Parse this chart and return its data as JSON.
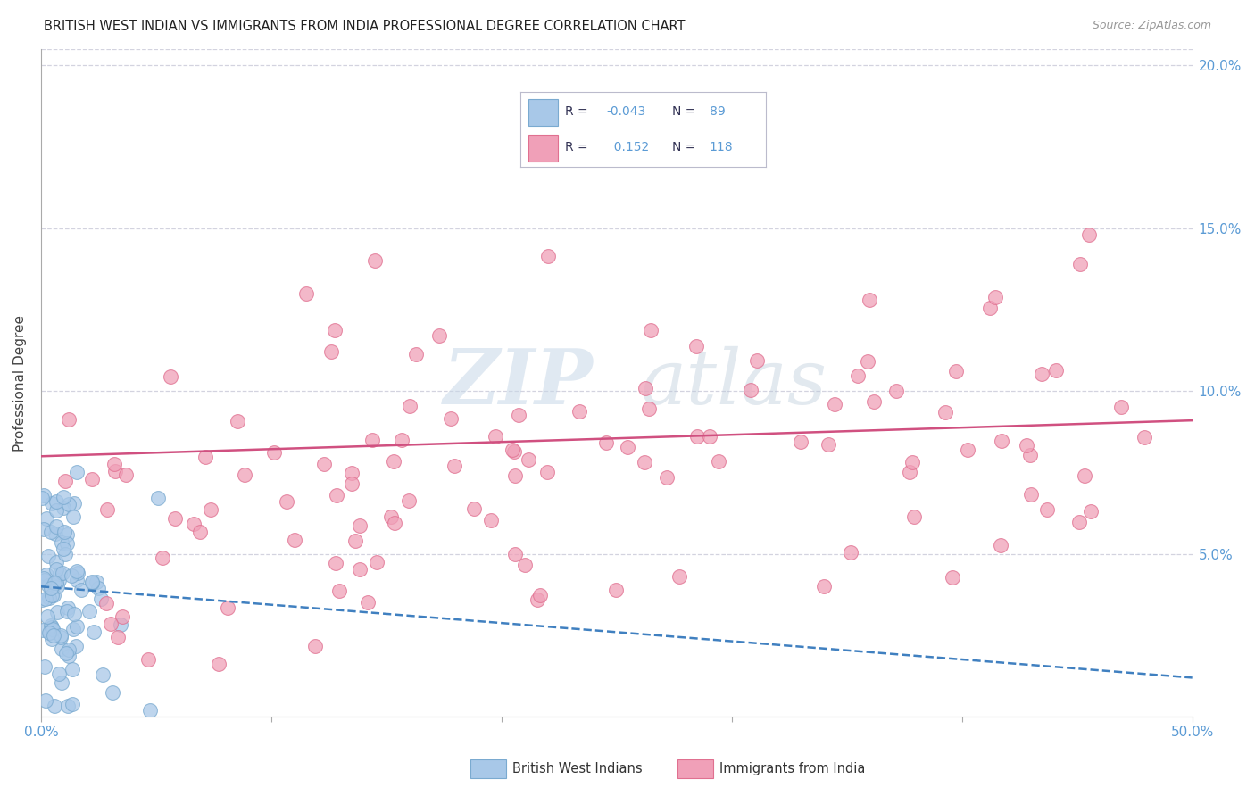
{
  "title": "BRITISH WEST INDIAN VS IMMIGRANTS FROM INDIA PROFESSIONAL DEGREE CORRELATION CHART",
  "source": "Source: ZipAtlas.com",
  "ylabel": "Professional Degree",
  "xlim": [
    0.0,
    0.5
  ],
  "ylim": [
    0.0,
    0.205
  ],
  "blue_R": -0.043,
  "blue_N": 89,
  "pink_R": 0.152,
  "pink_N": 118,
  "blue_color": "#A8C8E8",
  "pink_color": "#F0A0B8",
  "blue_edge": "#7AAAD0",
  "pink_edge": "#E07090",
  "trend_blue_color": "#4080C0",
  "trend_pink_color": "#D05080",
  "legend_label_blue": "British West Indians",
  "legend_label_pink": "Immigrants from India",
  "watermark_zip": "ZIP",
  "watermark_atlas": "atlas",
  "title_fontsize": 11,
  "tick_label_color": "#5B9BD5",
  "background_color": "#FFFFFF",
  "grid_color": "#C8C8D8",
  "trend_blue_y0": 0.04,
  "trend_blue_y1": 0.012,
  "trend_pink_y0": 0.08,
  "trend_pink_y1": 0.091
}
